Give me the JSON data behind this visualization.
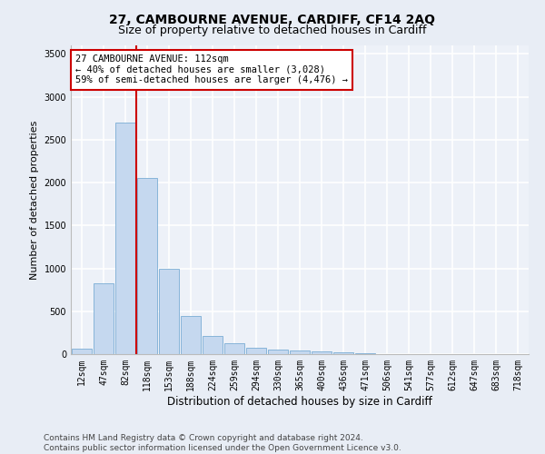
{
  "title": "27, CAMBOURNE AVENUE, CARDIFF, CF14 2AQ",
  "subtitle": "Size of property relative to detached houses in Cardiff",
  "xlabel": "Distribution of detached houses by size in Cardiff",
  "ylabel": "Number of detached properties",
  "bar_categories": [
    "12sqm",
    "47sqm",
    "82sqm",
    "118sqm",
    "153sqm",
    "188sqm",
    "224sqm",
    "259sqm",
    "294sqm",
    "330sqm",
    "365sqm",
    "400sqm",
    "436sqm",
    "471sqm",
    "506sqm",
    "541sqm",
    "577sqm",
    "612sqm",
    "647sqm",
    "683sqm",
    "718sqm"
  ],
  "bar_values": [
    60,
    830,
    2700,
    2050,
    1000,
    450,
    215,
    130,
    75,
    55,
    45,
    30,
    20,
    12,
    5,
    3,
    2,
    1,
    1,
    0,
    0
  ],
  "bar_color": "#c5d8ef",
  "bar_edge_color": "#7aadd4",
  "vline_x": 2.5,
  "vline_color": "#cc0000",
  "annotation_text": "27 CAMBOURNE AVENUE: 112sqm\n← 40% of detached houses are smaller (3,028)\n59% of semi-detached houses are larger (4,476) →",
  "annotation_box_color": "#ffffff",
  "annotation_box_edge_color": "#cc0000",
  "ylim": [
    0,
    3600
  ],
  "yticks": [
    0,
    500,
    1000,
    1500,
    2000,
    2500,
    3000,
    3500
  ],
  "footer_text": "Contains HM Land Registry data © Crown copyright and database right 2024.\nContains public sector information licensed under the Open Government Licence v3.0.",
  "background_color": "#e8edf5",
  "plot_bg_color": "#edf1f8",
  "grid_color": "#ffffff",
  "title_fontsize": 10,
  "subtitle_fontsize": 9,
  "ylabel_fontsize": 8,
  "xlabel_fontsize": 8.5,
  "tick_fontsize": 7,
  "annotation_fontsize": 7.5,
  "footer_fontsize": 6.5
}
